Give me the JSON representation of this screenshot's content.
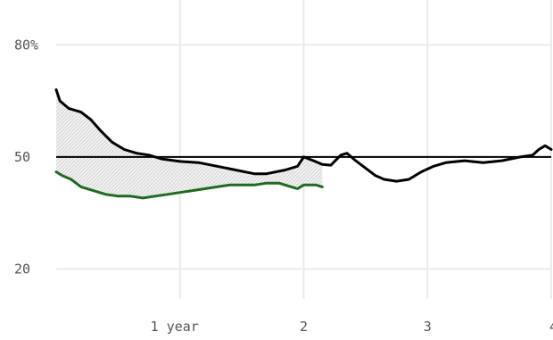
{
  "chart_data": {
    "type": "line",
    "x_tick_labels": [
      "1 year",
      "2",
      "3",
      "4"
    ],
    "x_ticks": [
      1,
      2,
      3,
      4
    ],
    "xlim": [
      0,
      4
    ],
    "y_tick_labels": [
      "80%",
      "50",
      "20"
    ],
    "y_ticks": [
      80,
      50,
      20
    ],
    "ylim": [
      12,
      92
    ],
    "reference_line": 50,
    "grid": true,
    "legend": "none",
    "shaded_between_series": true,
    "series": [
      {
        "color": "#000000",
        "points": [
          [
            0,
            68
          ],
          [
            0.03,
            65
          ],
          [
            0.1,
            63
          ],
          [
            0.2,
            62
          ],
          [
            0.28,
            60
          ],
          [
            0.36,
            57
          ],
          [
            0.45,
            54
          ],
          [
            0.55,
            52
          ],
          [
            0.65,
            51
          ],
          [
            0.75,
            50.5
          ],
          [
            0.85,
            49.5
          ],
          [
            1.0,
            48.8
          ],
          [
            1.15,
            48.5
          ],
          [
            1.3,
            47.5
          ],
          [
            1.45,
            46.5
          ],
          [
            1.6,
            45.5
          ],
          [
            1.7,
            45.5
          ],
          [
            1.85,
            46.5
          ],
          [
            1.95,
            47.5
          ],
          [
            2.0,
            50
          ],
          [
            2.08,
            49
          ],
          [
            2.15,
            48
          ],
          [
            2.22,
            47.8
          ],
          [
            2.3,
            50.5
          ],
          [
            2.35,
            51
          ],
          [
            2.42,
            49
          ],
          [
            2.5,
            47
          ],
          [
            2.58,
            45
          ],
          [
            2.65,
            44
          ],
          [
            2.75,
            43.5
          ],
          [
            2.85,
            44
          ],
          [
            2.95,
            46
          ],
          [
            3.05,
            47.5
          ],
          [
            3.15,
            48.5
          ],
          [
            3.3,
            49
          ],
          [
            3.45,
            48.5
          ],
          [
            3.6,
            49
          ],
          [
            3.75,
            50
          ],
          [
            3.85,
            50.5
          ],
          [
            3.9,
            52
          ],
          [
            3.95,
            53
          ],
          [
            4.0,
            52
          ]
        ]
      },
      {
        "color": "#1e6b1e",
        "points": [
          [
            0,
            46
          ],
          [
            0.05,
            45
          ],
          [
            0.12,
            44
          ],
          [
            0.2,
            42
          ],
          [
            0.3,
            41
          ],
          [
            0.4,
            40
          ],
          [
            0.5,
            39.5
          ],
          [
            0.6,
            39.5
          ],
          [
            0.7,
            39
          ],
          [
            0.8,
            39.5
          ],
          [
            0.9,
            40
          ],
          [
            1.0,
            40.5
          ],
          [
            1.1,
            41
          ],
          [
            1.2,
            41.5
          ],
          [
            1.3,
            42
          ],
          [
            1.4,
            42.5
          ],
          [
            1.5,
            42.5
          ],
          [
            1.6,
            42.5
          ],
          [
            1.7,
            43
          ],
          [
            1.8,
            43
          ],
          [
            1.9,
            42
          ],
          [
            1.95,
            41.5
          ],
          [
            2.0,
            42.5
          ],
          [
            2.1,
            42.5
          ],
          [
            2.15,
            42
          ]
        ]
      }
    ]
  }
}
